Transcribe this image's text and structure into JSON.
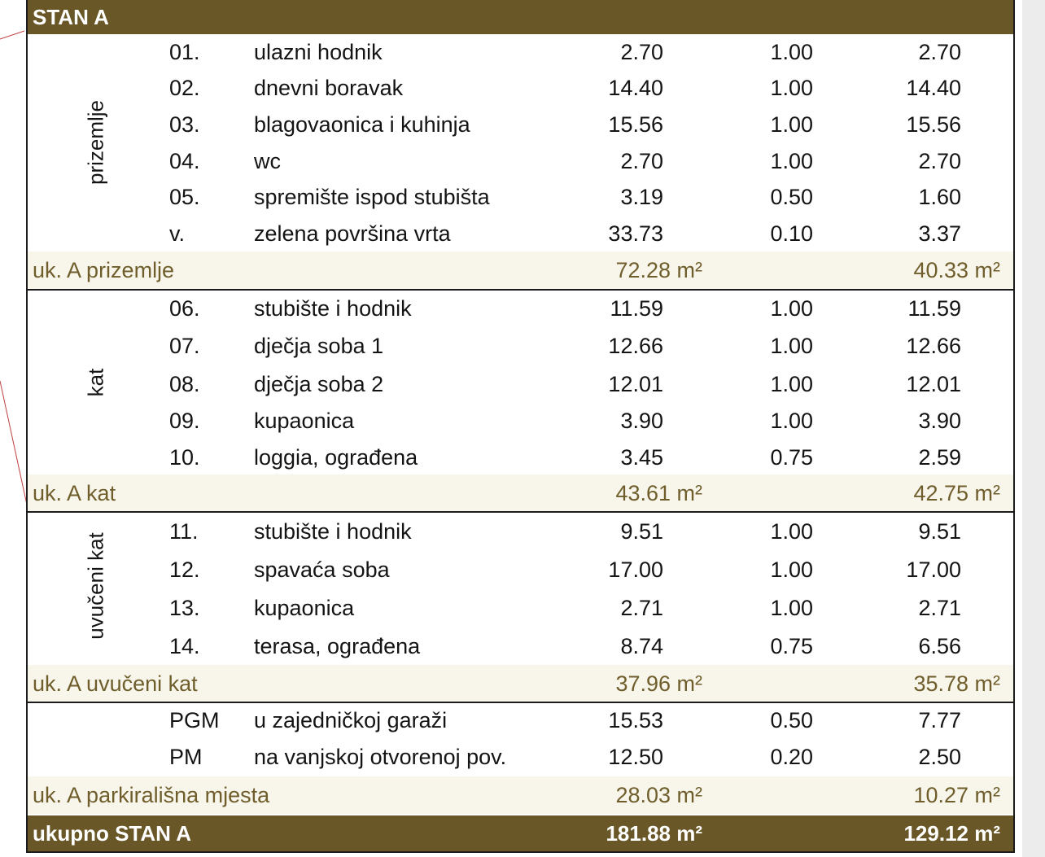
{
  "title": "STAN A",
  "sections": [
    {
      "floor": "prizemlje",
      "rows": [
        {
          "num": "01.",
          "name": "ulazni hodnik",
          "area": "2.70",
          "coef": "1.00",
          "total": "2.70"
        },
        {
          "num": "02.",
          "name": "dnevni boravak",
          "area": "14.40",
          "coef": "1.00",
          "total": "14.40"
        },
        {
          "num": "03.",
          "name": "blagovaonica i kuhinja",
          "area": "15.56",
          "coef": "1.00",
          "total": "15.56"
        },
        {
          "num": "04.",
          "name": "wc",
          "area": "2.70",
          "coef": "1.00",
          "total": "2.70"
        },
        {
          "num": "05.",
          "name": "spremište ispod stubišta",
          "area": "3.19",
          "coef": "0.50",
          "total": "1.60"
        },
        {
          "num": "v.",
          "name": "zelena površina vrta",
          "area": "33.73",
          "coef": "0.10",
          "total": "3.37"
        }
      ],
      "subtotal": {
        "label": "uk. A prizemlje",
        "area": "72.28 m²",
        "total": "40.33 m²"
      }
    },
    {
      "floor": "kat",
      "rows": [
        {
          "num": "06.",
          "name": "stubište i hodnik",
          "area": "11.59",
          "coef": "1.00",
          "total": "11.59"
        },
        {
          "num": "07.",
          "name": "dječja soba 1",
          "area": "12.66",
          "coef": "1.00",
          "total": "12.66"
        },
        {
          "num": "08.",
          "name": "dječja soba 2",
          "area": "12.01",
          "coef": "1.00",
          "total": "12.01"
        },
        {
          "num": "09.",
          "name": "kupaonica",
          "area": "3.90",
          "coef": "1.00",
          "total": "3.90"
        },
        {
          "num": "10.",
          "name": "loggia, ograđena",
          "area": "3.45",
          "coef": "0.75",
          "total": "2.59"
        }
      ],
      "subtotal": {
        "label": "uk. A kat",
        "area": "43.61 m²",
        "total": "42.75 m²"
      }
    },
    {
      "floor": "uvučeni kat",
      "rows": [
        {
          "num": "11.",
          "name": "stubište i hodnik",
          "area": "9.51",
          "coef": "1.00",
          "total": "9.51"
        },
        {
          "num": "12.",
          "name": "spavaća soba",
          "area": "17.00",
          "coef": "1.00",
          "total": "17.00"
        },
        {
          "num": "13.",
          "name": "kupaonica",
          "area": "2.71",
          "coef": "1.00",
          "total": "2.71"
        },
        {
          "num": "14.",
          "name": "terasa, ograđena",
          "area": "8.74",
          "coef": "0.75",
          "total": "6.56"
        }
      ],
      "subtotal": {
        "label": "uk. A uvučeni kat",
        "area": "37.96 m²",
        "total": "35.78 m²"
      }
    },
    {
      "floor": "",
      "rows": [
        {
          "num": "PGM",
          "name": "u zajedničkoj garaži",
          "area": "15.53",
          "coef": "0.50",
          "total": "7.77"
        },
        {
          "num": "PM",
          "name": "na vanjskoj otvorenoj pov.",
          "area": "12.50",
          "coef": "0.20",
          "total": "2.50"
        }
      ],
      "subtotal": {
        "label": "uk. A parkirališna mjesta",
        "area": "28.03 m²",
        "total": "10.27 m²"
      }
    }
  ],
  "grand_total": {
    "label": "ukupno STAN A",
    "area": "181.88 m²",
    "total": "129.12 m²"
  },
  "colors": {
    "header_bg": "#6a5727",
    "subtotal_bg": "#f8f5ea",
    "subtotal_text": "#6f5e2c"
  }
}
